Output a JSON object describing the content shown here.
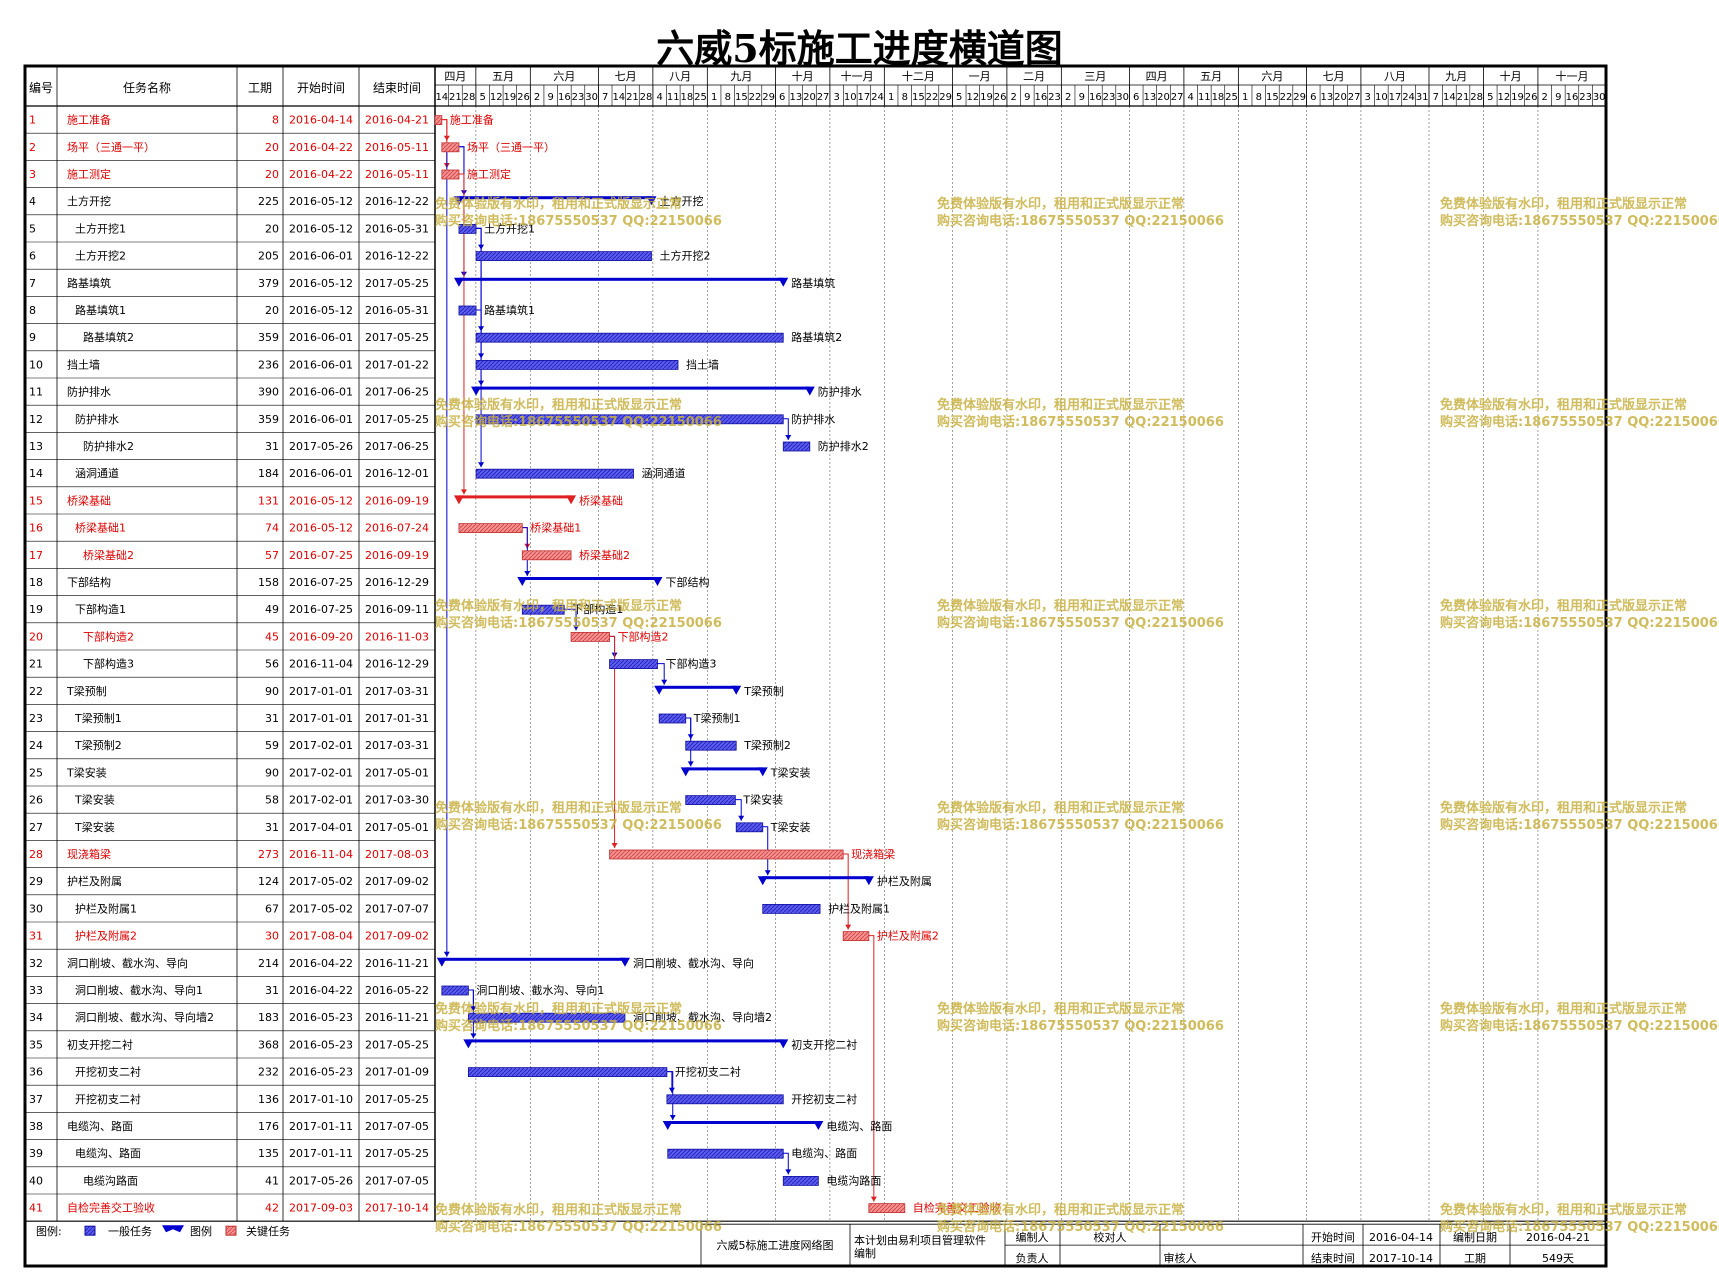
{
  "title": "六威5标施工进度横道图",
  "headers": {
    "id": "编号",
    "name": "任务名称",
    "dur": "工期",
    "start": "开始时间",
    "end": "结束时间"
  },
  "timeline": {
    "months": [
      "四月",
      "五月",
      "六月",
      "七月",
      "八月",
      "九月",
      "十月",
      "十一月",
      "十二月",
      "一月",
      "二月",
      "三月",
      "四月",
      "五月",
      "六月",
      "七月",
      "八月",
      "九月",
      "十月",
      "十一月"
    ],
    "week_days": [
      14,
      21,
      28,
      5,
      12,
      19,
      26,
      2,
      9,
      16,
      23,
      30,
      7,
      14,
      21,
      28,
      4,
      11,
      18,
      25,
      1,
      8,
      15,
      22,
      29,
      6,
      13,
      20,
      27,
      3,
      10,
      17,
      24,
      1,
      8,
      15,
      22,
      29,
      5,
      12,
      19,
      26,
      2,
      9,
      16,
      23,
      2,
      9,
      16,
      23,
      30,
      6,
      13,
      20,
      27,
      4,
      11,
      18,
      25,
      1,
      8,
      15,
      22,
      29,
      6,
      13,
      20,
      27,
      3,
      10,
      17,
      24,
      31,
      7,
      14,
      21,
      28,
      5,
      12,
      19,
      26,
      2,
      9,
      16,
      23,
      30
    ]
  },
  "tasks": [
    {
      "id": "1",
      "name": "施工准备",
      "dur": "8",
      "start": "2016-04-14",
      "end": "2016-04-21",
      "critical": true,
      "summary": false,
      "indent": 0,
      "label": "施工准备"
    },
    {
      "id": "2",
      "name": "场平（三通一平）",
      "dur": "20",
      "start": "2016-04-22",
      "end": "2016-05-11",
      "critical": true,
      "summary": false,
      "indent": 0,
      "label": "场平（三通一平）"
    },
    {
      "id": "3",
      "name": "施工测定",
      "dur": "20",
      "start": "2016-04-22",
      "end": "2016-05-11",
      "critical": true,
      "summary": false,
      "indent": 0,
      "label": "施工测定"
    },
    {
      "id": "4",
      "name": "土方开挖",
      "dur": "225",
      "start": "2016-05-12",
      "end": "2016-12-22",
      "critical": false,
      "summary": true,
      "indent": 0,
      "label": "土方开挖"
    },
    {
      "id": "5",
      "name": "土方开挖1",
      "dur": "20",
      "start": "2016-05-12",
      "end": "2016-05-31",
      "critical": false,
      "summary": false,
      "indent": 1,
      "label": "土方开挖1"
    },
    {
      "id": "6",
      "name": "土方开挖2",
      "dur": "205",
      "start": "2016-06-01",
      "end": "2016-12-22",
      "critical": false,
      "summary": false,
      "indent": 1,
      "label": "土方开挖2"
    },
    {
      "id": "7",
      "name": "路基填筑",
      "dur": "379",
      "start": "2016-05-12",
      "end": "2017-05-25",
      "critical": false,
      "summary": true,
      "indent": 0,
      "label": "路基填筑"
    },
    {
      "id": "8",
      "name": "路基填筑1",
      "dur": "20",
      "start": "2016-05-12",
      "end": "2016-05-31",
      "critical": false,
      "summary": false,
      "indent": 1,
      "label": "路基填筑1"
    },
    {
      "id": "9",
      "name": "路基填筑2",
      "dur": "359",
      "start": "2016-06-01",
      "end": "2017-05-25",
      "critical": false,
      "summary": false,
      "indent": 2,
      "label": "路基填筑2"
    },
    {
      "id": "10",
      "name": "挡土墙",
      "dur": "236",
      "start": "2016-06-01",
      "end": "2017-01-22",
      "critical": false,
      "summary": false,
      "indent": 0,
      "label": "挡土墙"
    },
    {
      "id": "11",
      "name": "防护排水",
      "dur": "390",
      "start": "2016-06-01",
      "end": "2017-06-25",
      "critical": false,
      "summary": true,
      "indent": 0,
      "label": "防护排水"
    },
    {
      "id": "12",
      "name": "防护排水",
      "dur": "359",
      "start": "2016-06-01",
      "end": "2017-05-25",
      "critical": false,
      "summary": false,
      "indent": 1,
      "label": "防护排水"
    },
    {
      "id": "13",
      "name": "防护排水2",
      "dur": "31",
      "start": "2017-05-26",
      "end": "2017-06-25",
      "critical": false,
      "summary": false,
      "indent": 2,
      "label": "防护排水2"
    },
    {
      "id": "14",
      "name": "涵洞通道",
      "dur": "184",
      "start": "2016-06-01",
      "end": "2016-12-01",
      "critical": false,
      "summary": false,
      "indent": 1,
      "label": "涵洞通道"
    },
    {
      "id": "15",
      "name": "桥梁基础",
      "dur": "131",
      "start": "2016-05-12",
      "end": "2016-09-19",
      "critical": true,
      "summary": true,
      "indent": 0,
      "label": "桥梁基础"
    },
    {
      "id": "16",
      "name": "桥梁基础1",
      "dur": "74",
      "start": "2016-05-12",
      "end": "2016-07-24",
      "critical": true,
      "summary": false,
      "indent": 1,
      "label": "桥梁基础1"
    },
    {
      "id": "17",
      "name": "桥梁基础2",
      "dur": "57",
      "start": "2016-07-25",
      "end": "2016-09-19",
      "critical": true,
      "summary": false,
      "indent": 2,
      "label": "桥梁基础2"
    },
    {
      "id": "18",
      "name": "下部结构",
      "dur": "158",
      "start": "2016-07-25",
      "end": "2016-12-29",
      "critical": false,
      "summary": true,
      "indent": 0,
      "label": "下部结构"
    },
    {
      "id": "19",
      "name": "下部构造1",
      "dur": "49",
      "start": "2016-07-25",
      "end": "2016-09-11",
      "critical": false,
      "summary": false,
      "indent": 1,
      "label": "下部构造1"
    },
    {
      "id": "20",
      "name": "下部构造2",
      "dur": "45",
      "start": "2016-09-20",
      "end": "2016-11-03",
      "critical": true,
      "summary": false,
      "indent": 2,
      "label": "下部构造2"
    },
    {
      "id": "21",
      "name": "下部构造3",
      "dur": "56",
      "start": "2016-11-04",
      "end": "2016-12-29",
      "critical": false,
      "summary": false,
      "indent": 2,
      "label": "下部构造3"
    },
    {
      "id": "22",
      "name": "T梁预制",
      "dur": "90",
      "start": "2017-01-01",
      "end": "2017-03-31",
      "critical": false,
      "summary": true,
      "indent": 0,
      "label": "T梁预制"
    },
    {
      "id": "23",
      "name": "T梁预制1",
      "dur": "31",
      "start": "2017-01-01",
      "end": "2017-01-31",
      "critical": false,
      "summary": false,
      "indent": 1,
      "label": "T梁预制1"
    },
    {
      "id": "24",
      "name": "T梁预制2",
      "dur": "59",
      "start": "2017-02-01",
      "end": "2017-03-31",
      "critical": false,
      "summary": false,
      "indent": 1,
      "label": "T梁预制2"
    },
    {
      "id": "25",
      "name": "T梁安装",
      "dur": "90",
      "start": "2017-02-01",
      "end": "2017-05-01",
      "critical": false,
      "summary": true,
      "indent": 0,
      "label": "T梁安装"
    },
    {
      "id": "26",
      "name": "T梁安装",
      "dur": "58",
      "start": "2017-02-01",
      "end": "2017-03-30",
      "critical": false,
      "summary": false,
      "indent": 1,
      "label": "T梁安装"
    },
    {
      "id": "27",
      "name": "T梁安装",
      "dur": "31",
      "start": "2017-04-01",
      "end": "2017-05-01",
      "critical": false,
      "summary": false,
      "indent": 1,
      "label": "T梁安装"
    },
    {
      "id": "28",
      "name": "现浇箱梁",
      "dur": "273",
      "start": "2016-11-04",
      "end": "2017-08-03",
      "critical": true,
      "summary": false,
      "indent": 0,
      "label": "现浇箱梁"
    },
    {
      "id": "29",
      "name": "护栏及附属",
      "dur": "124",
      "start": "2017-05-02",
      "end": "2017-09-02",
      "critical": false,
      "summary": true,
      "indent": 0,
      "label": "护栏及附属"
    },
    {
      "id": "30",
      "name": "护栏及附属1",
      "dur": "67",
      "start": "2017-05-02",
      "end": "2017-07-07",
      "critical": false,
      "summary": false,
      "indent": 1,
      "label": "护栏及附属1"
    },
    {
      "id": "31",
      "name": "护栏及附属2",
      "dur": "30",
      "start": "2017-08-04",
      "end": "2017-09-02",
      "critical": true,
      "summary": false,
      "indent": 1,
      "label": "护栏及附属2"
    },
    {
      "id": "32",
      "name": "洞口削坡、截水沟、导向",
      "dur": "214",
      "start": "2016-04-22",
      "end": "2016-11-21",
      "critical": false,
      "summary": true,
      "indent": 0,
      "label": "洞口削坡、截水沟、导向"
    },
    {
      "id": "33",
      "name": "洞口削坡、截水沟、导向1",
      "dur": "31",
      "start": "2016-04-22",
      "end": "2016-05-22",
      "critical": false,
      "summary": false,
      "indent": 1,
      "label": "洞口削坡、截水沟、导向1"
    },
    {
      "id": "34",
      "name": "洞口削坡、截水沟、导向墙2",
      "dur": "183",
      "start": "2016-05-23",
      "end": "2016-11-21",
      "critical": false,
      "summary": false,
      "indent": 1,
      "label": "洞口削坡、截水沟、导向墙2"
    },
    {
      "id": "35",
      "name": "初支开挖二衬",
      "dur": "368",
      "start": "2016-05-23",
      "end": "2017-05-25",
      "critical": false,
      "summary": true,
      "indent": 0,
      "label": "初支开挖二衬"
    },
    {
      "id": "36",
      "name": "开挖初支二衬",
      "dur": "232",
      "start": "2016-05-23",
      "end": "2017-01-09",
      "critical": false,
      "summary": false,
      "indent": 1,
      "label": "开挖初支二衬"
    },
    {
      "id": "37",
      "name": "开挖初支二衬",
      "dur": "136",
      "start": "2017-01-10",
      "end": "2017-05-25",
      "critical": false,
      "summary": false,
      "indent": 1,
      "label": "开挖初支二衬"
    },
    {
      "id": "38",
      "name": "电缆沟、路面",
      "dur": "176",
      "start": "2017-01-11",
      "end": "2017-07-05",
      "critical": false,
      "summary": true,
      "indent": 0,
      "label": "电缆沟、路面"
    },
    {
      "id": "39",
      "name": "电缆沟、路面",
      "dur": "135",
      "start": "2017-01-11",
      "end": "2017-05-25",
      "critical": false,
      "summary": false,
      "indent": 1,
      "label": "电缆沟、路面"
    },
    {
      "id": "40",
      "name": "电缆沟路面",
      "dur": "41",
      "start": "2017-05-26",
      "end": "2017-07-05",
      "critical": false,
      "summary": false,
      "indent": 2,
      "label": "电缆沟路面"
    },
    {
      "id": "41",
      "name": "自检完善交工验收",
      "dur": "42",
      "start": "2017-09-03",
      "end": "2017-10-14",
      "critical": true,
      "summary": false,
      "indent": 0,
      "label": "自检完善交工验收"
    }
  ],
  "legend": {
    "label": "图例:",
    "normal": "一般任务",
    "summary": "图例",
    "critical": "关键任务"
  },
  "footer": {
    "network_title": "六威5标施工进度网络图",
    "software": "本计划由易利项目管理软件编制",
    "compile": "编制人",
    "proofread": "校对人",
    "owner": "负责人",
    "reviewer": "审核人",
    "start_label": "开始时间",
    "start_value": "2016-04-14",
    "compile_date_label": "编制日期",
    "compile_date_value": "2016-04-21",
    "end_label": "结束时间",
    "end_value": "2017-10-14",
    "dur_label": "工期",
    "dur_value": "549天"
  },
  "watermark": {
    "line1": "免费体验版有水印，租用和正式版显示正常",
    "line2": "购买咨询电话:18675550537 QQ:22150066"
  },
  "colors": {
    "normal": "#3a3ae0",
    "critical": "#f07070",
    "link_normal": "#0000d0",
    "link_critical": "#e02020",
    "critical_text": "#e00000",
    "watermark": "#c8b040"
  },
  "chart_data": {
    "type": "gantt",
    "title": "六威5标施工进度横道图",
    "time_range": [
      "2016-04-14",
      "2017-10-14"
    ],
    "total_duration": "549天",
    "dependencies": [
      [
        "1",
        "2"
      ],
      [
        "1",
        "3"
      ],
      [
        "2",
        "4"
      ],
      [
        "5",
        "6"
      ],
      [
        "2",
        "7"
      ],
      [
        "8",
        "9"
      ],
      [
        "5",
        "10"
      ],
      [
        "5",
        "11"
      ],
      [
        "12",
        "13"
      ],
      [
        "5",
        "14"
      ],
      [
        "3",
        "15"
      ],
      [
        "16",
        "17"
      ],
      [
        "16",
        "18"
      ],
      [
        "19",
        "20"
      ],
      [
        "20",
        "21"
      ],
      [
        "21",
        "22"
      ],
      [
        "23",
        "24"
      ],
      [
        "23",
        "25"
      ],
      [
        "26",
        "27"
      ],
      [
        "20",
        "28"
      ],
      [
        "27",
        "29"
      ],
      [
        "28",
        "31"
      ],
      [
        "2",
        "32"
      ],
      [
        "33",
        "34"
      ],
      [
        "33",
        "35"
      ],
      [
        "36",
        "37"
      ],
      [
        "36",
        "38"
      ],
      [
        "39",
        "40"
      ],
      [
        "31",
        "41"
      ]
    ]
  }
}
